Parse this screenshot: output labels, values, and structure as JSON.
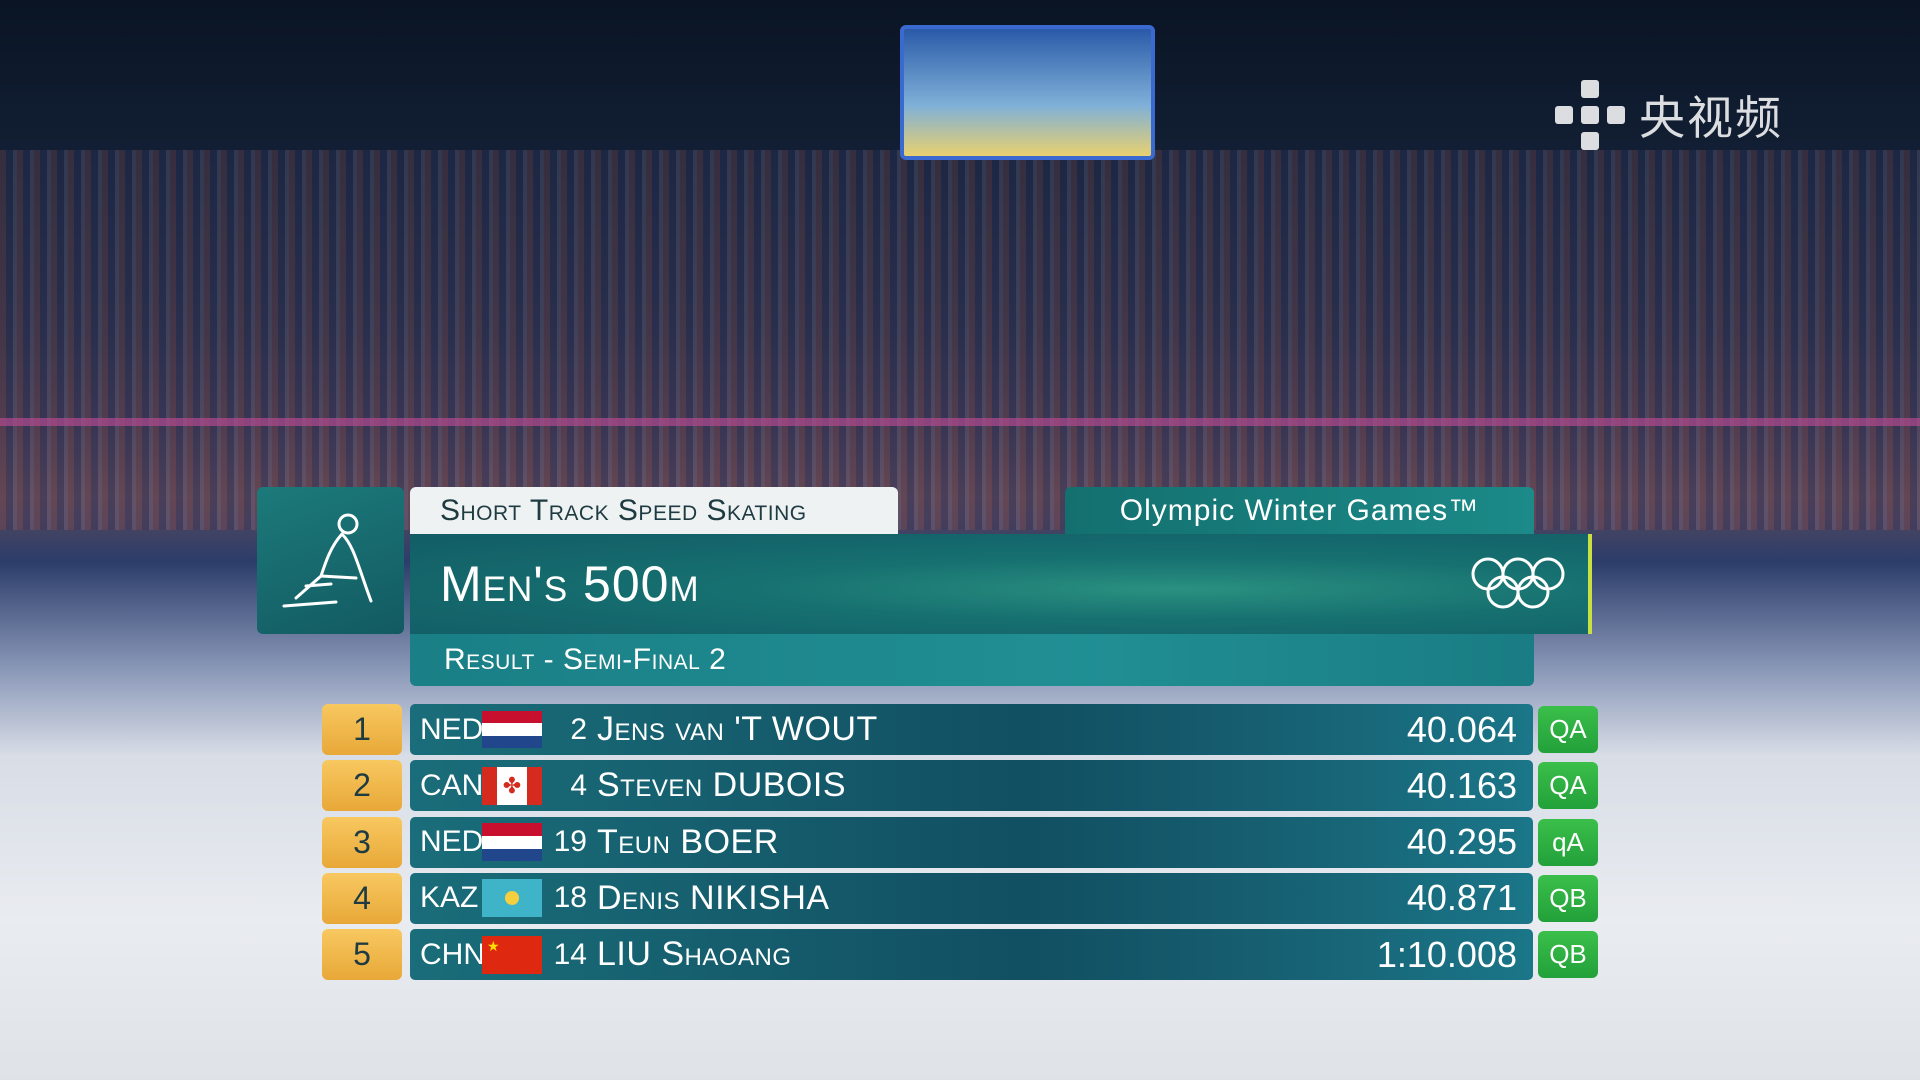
{
  "broadcaster_logo": "央视频",
  "header": {
    "sport": "Short Track Speed Skating",
    "games": "Olympic Winter Games™",
    "event": "Men's 500m",
    "phase": "Result - Semi-Final 2",
    "sport_icon": "short-track-skater-icon",
    "games_icon": "olympic-rings-icon"
  },
  "results": [
    {
      "rank": "1",
      "noc": "NED",
      "flag": "netherlands",
      "bib": "2",
      "name": "Jens van 'T WOUT",
      "time": "40.064",
      "qual": "QA"
    },
    {
      "rank": "2",
      "noc": "CAN",
      "flag": "canada",
      "bib": "4",
      "name": "Steven DUBOIS",
      "time": "40.163",
      "qual": "QA"
    },
    {
      "rank": "3",
      "noc": "NED",
      "flag": "netherlands",
      "bib": "19",
      "name": "Teun BOER",
      "time": "40.295",
      "qual": "qA"
    },
    {
      "rank": "4",
      "noc": "KAZ",
      "flag": "kazakhstan",
      "bib": "18",
      "name": "Denis NIKISHA",
      "time": "40.871",
      "qual": "QB"
    },
    {
      "rank": "5",
      "noc": "CHN",
      "flag": "china",
      "bib": "14",
      "name": "LIU Shaoang",
      "time": "1:10.008",
      "qual": "QB"
    }
  ],
  "colors": {
    "teal": "#146a70",
    "rank": "#f0b848",
    "qualified": "#2fb043"
  }
}
